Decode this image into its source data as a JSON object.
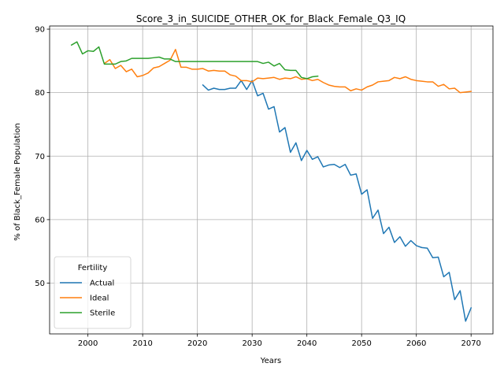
{
  "chart_data": {
    "type": "line",
    "title": "Score_3_in_SUICIDE_OTHER_OK_for_Black_Female_Q3_IQ",
    "xlabel": "Years",
    "ylabel": "% of Black_Female Population",
    "xlim": [
      1993,
      2074
    ],
    "ylim": [
      42,
      90.5
    ],
    "xticks": [
      2000,
      2010,
      2020,
      2030,
      2040,
      2050,
      2060,
      2070
    ],
    "yticks": [
      50,
      60,
      70,
      80,
      90
    ],
    "grid": true,
    "legend": {
      "title": "Fertility",
      "placement": "lower-left"
    },
    "series": [
      {
        "name": "Actual",
        "color": "#1f77b4",
        "x": [
          2021,
          2022,
          2023,
          2024,
          2025,
          2026,
          2027,
          2028,
          2029,
          2030,
          2031,
          2032,
          2033,
          2034,
          2035,
          2036,
          2037,
          2038,
          2039,
          2040,
          2041,
          2042,
          2043,
          2044,
          2045,
          2046,
          2047,
          2048,
          2049,
          2050,
          2051,
          2052,
          2053,
          2054,
          2055,
          2056,
          2057,
          2058,
          2059,
          2060,
          2061,
          2062,
          2063,
          2064,
          2065,
          2066,
          2067,
          2068,
          2069,
          2070
        ],
        "y": [
          81.2,
          80.4,
          80.7,
          80.5,
          80.5,
          80.7,
          80.7,
          81.9,
          80.5,
          81.9,
          79.5,
          79.9,
          77.4,
          77.8,
          73.8,
          74.5,
          70.6,
          72.1,
          69.3,
          70.9,
          69.5,
          69.9,
          68.3,
          68.6,
          68.7,
          68.2,
          68.7,
          67.0,
          67.2,
          64.0,
          64.7,
          60.2,
          61.5,
          57.8,
          58.8,
          56.4,
          57.3,
          55.8,
          56.7,
          55.9,
          55.6,
          55.5,
          54.0,
          54.1,
          51.0,
          51.7,
          47.4,
          48.8,
          44.0,
          46.1
        ]
      },
      {
        "name": "Ideal",
        "color": "#ff7f0e",
        "x": [
          2003,
          2004,
          2005,
          2006,
          2007,
          2008,
          2009,
          2010,
          2011,
          2012,
          2013,
          2014,
          2015,
          2016,
          2017,
          2018,
          2019,
          2020,
          2021,
          2022,
          2023,
          2024,
          2025,
          2026,
          2027,
          2028,
          2029,
          2030,
          2031,
          2032,
          2033,
          2034,
          2035,
          2036,
          2037,
          2038,
          2039,
          2040,
          2041,
          2042,
          2043,
          2044,
          2045,
          2046,
          2047,
          2048,
          2049,
          2050,
          2051,
          2052,
          2053,
          2054,
          2055,
          2056,
          2057,
          2058,
          2059,
          2060,
          2061,
          2062,
          2063,
          2064,
          2065,
          2066,
          2067,
          2068,
          2069,
          2070
        ],
        "y": [
          84.6,
          85.2,
          83.8,
          84.3,
          83.3,
          83.7,
          82.5,
          82.7,
          83.1,
          83.9,
          84.1,
          84.6,
          85.1,
          86.8,
          84.0,
          84.0,
          83.7,
          83.7,
          83.8,
          83.4,
          83.5,
          83.4,
          83.4,
          82.8,
          82.6,
          81.9,
          81.9,
          81.7,
          82.3,
          82.2,
          82.3,
          82.4,
          82.1,
          82.3,
          82.2,
          82.5,
          82.1,
          82.2,
          81.9,
          82.1,
          81.6,
          81.2,
          81.0,
          80.9,
          80.9,
          80.3,
          80.6,
          80.4,
          80.9,
          81.2,
          81.7,
          81.8,
          81.9,
          82.4,
          82.2,
          82.5,
          82.1,
          81.9,
          81.8,
          81.7,
          81.7,
          81.0,
          81.3,
          80.6,
          80.7,
          80.0,
          80.1,
          80.2
        ]
      },
      {
        "name": "Sterile",
        "color": "#2ca02c",
        "x": [
          1997,
          1998,
          1999,
          2000,
          2001,
          2002,
          2003,
          2004,
          2005,
          2006,
          2007,
          2008,
          2009,
          2010,
          2011,
          2012,
          2013,
          2014,
          2015,
          2016,
          2017,
          2018,
          2019,
          2020,
          2021,
          2022,
          2023,
          2024,
          2025,
          2026,
          2027,
          2028,
          2029,
          2030,
          2031,
          2032,
          2033,
          2034,
          2035,
          2036,
          2037,
          2038,
          2039,
          2040,
          2041,
          2042
        ],
        "y": [
          87.5,
          88.0,
          86.1,
          86.6,
          86.5,
          87.2,
          84.5,
          84.5,
          84.5,
          84.9,
          85.0,
          85.4,
          85.4,
          85.4,
          85.4,
          85.5,
          85.6,
          85.3,
          85.3,
          84.9,
          84.9,
          84.9,
          84.9,
          84.9,
          84.9,
          84.9,
          84.9,
          84.9,
          84.9,
          84.9,
          84.9,
          84.9,
          84.9,
          84.9,
          84.9,
          84.6,
          84.8,
          84.2,
          84.6,
          83.6,
          83.5,
          83.5,
          82.4,
          82.2,
          82.5,
          82.6
        ]
      }
    ]
  }
}
